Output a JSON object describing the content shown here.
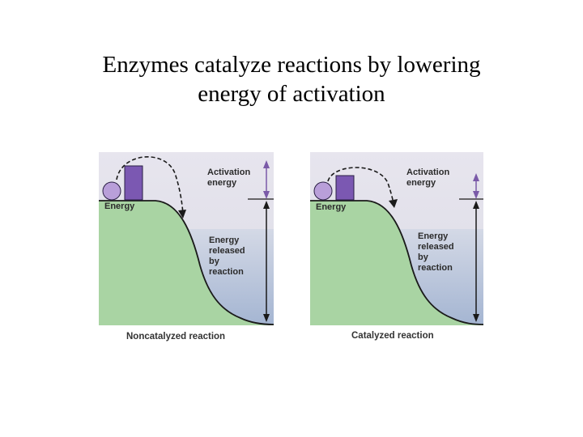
{
  "title": {
    "line1": "Enzymes catalyze reactions by lowering",
    "line2": "energy of activation"
  },
  "panels": [
    {
      "energy_label": "Energy",
      "activation_label": [
        "Activation",
        "energy"
      ],
      "released_label": [
        "Energy",
        "released",
        "by",
        "reaction"
      ],
      "caption": "Noncatalyzed reaction"
    },
    {
      "energy_label": "Energy",
      "activation_label": [
        "Activation",
        "energy"
      ],
      "released_label": [
        "Energy",
        "released",
        "by",
        "reaction"
      ],
      "caption": "Catalyzed reaction"
    }
  ],
  "colors": {
    "sky": "#e6e3ec",
    "ground": "#a9d4a3",
    "water": "#a7b8d3",
    "block": "#7b58b2",
    "ball": "#b99fd9",
    "arrow": "#7a5aa8"
  }
}
